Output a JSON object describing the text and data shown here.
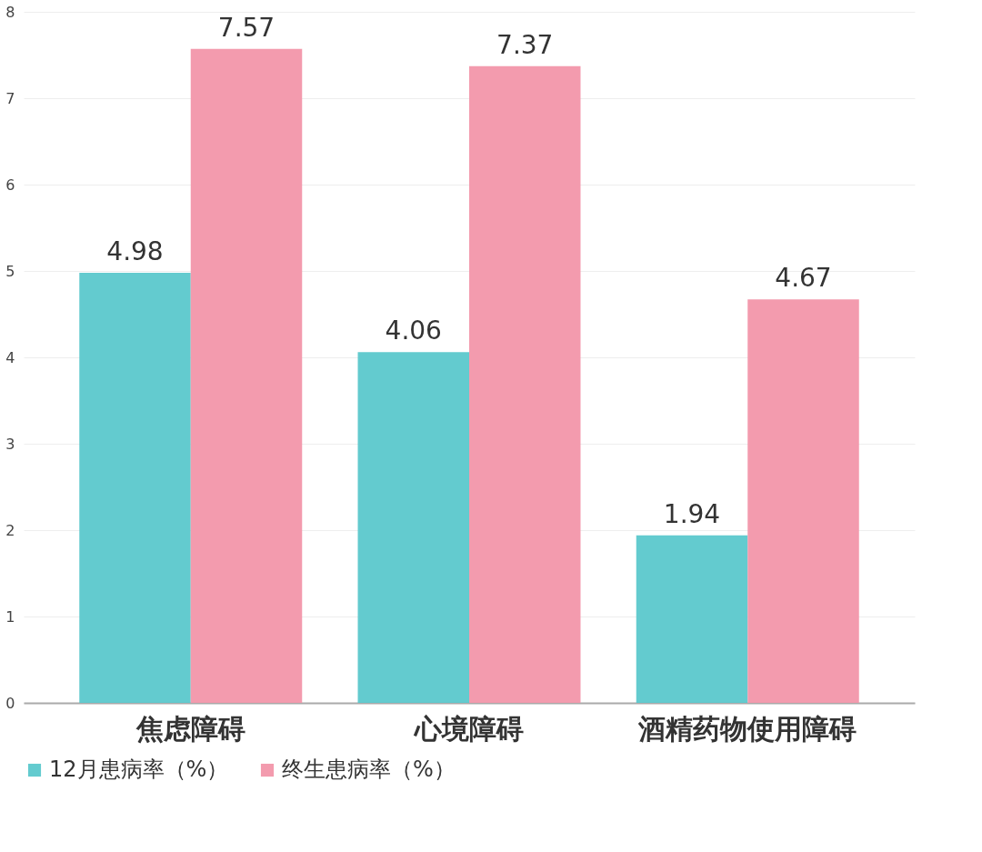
{
  "chart_data": {
    "type": "bar",
    "categories": [
      "焦虑障碍",
      "心境障碍",
      "酒精药物使用障碍"
    ],
    "series": [
      {
        "name": "12月患病率（%）",
        "color": "#5bc8cc",
        "values": [
          4.98,
          4.06,
          1.94
        ]
      },
      {
        "name": "终生患病率（%）",
        "color": "#f296aa",
        "values": [
          7.57,
          7.37,
          4.67
        ]
      }
    ],
    "ylim": [
      0,
      8
    ],
    "yticks": [
      0,
      1,
      2,
      3,
      4,
      5,
      6,
      7,
      8
    ],
    "grid": "y",
    "legend": "bottom",
    "data_labels": true
  }
}
